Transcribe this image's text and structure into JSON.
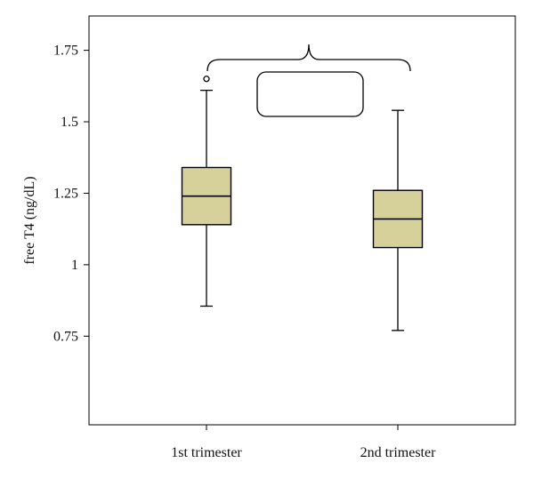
{
  "chart_data": {
    "type": "box",
    "ylabel": "free T4 (ng/dL)",
    "xlabel": "",
    "ylim": [
      0.44,
      1.87
    ],
    "yticks": [
      0.75,
      1,
      1.25,
      1.5,
      1.75
    ],
    "ytick_labels": [
      "0.75",
      "1",
      "1.25",
      "1.5",
      "1.75"
    ],
    "categories": [
      "1st trimester",
      "2nd trimester"
    ],
    "box_color": "#d6d19a",
    "series": [
      {
        "values": [
          {
            "whisker_low": 0.855,
            "q1": 1.14,
            "median": 1.24,
            "q3": 1.34,
            "whisker_high": 1.61,
            "outliers": [
              1.65
            ]
          },
          {
            "whisker_low": 0.77,
            "q1": 1.06,
            "median": 1.16,
            "q3": 1.26,
            "whisker_high": 1.54,
            "outliers": []
          }
        ]
      }
    ],
    "annotation_box_text": "",
    "grid": false,
    "legend": "none"
  }
}
